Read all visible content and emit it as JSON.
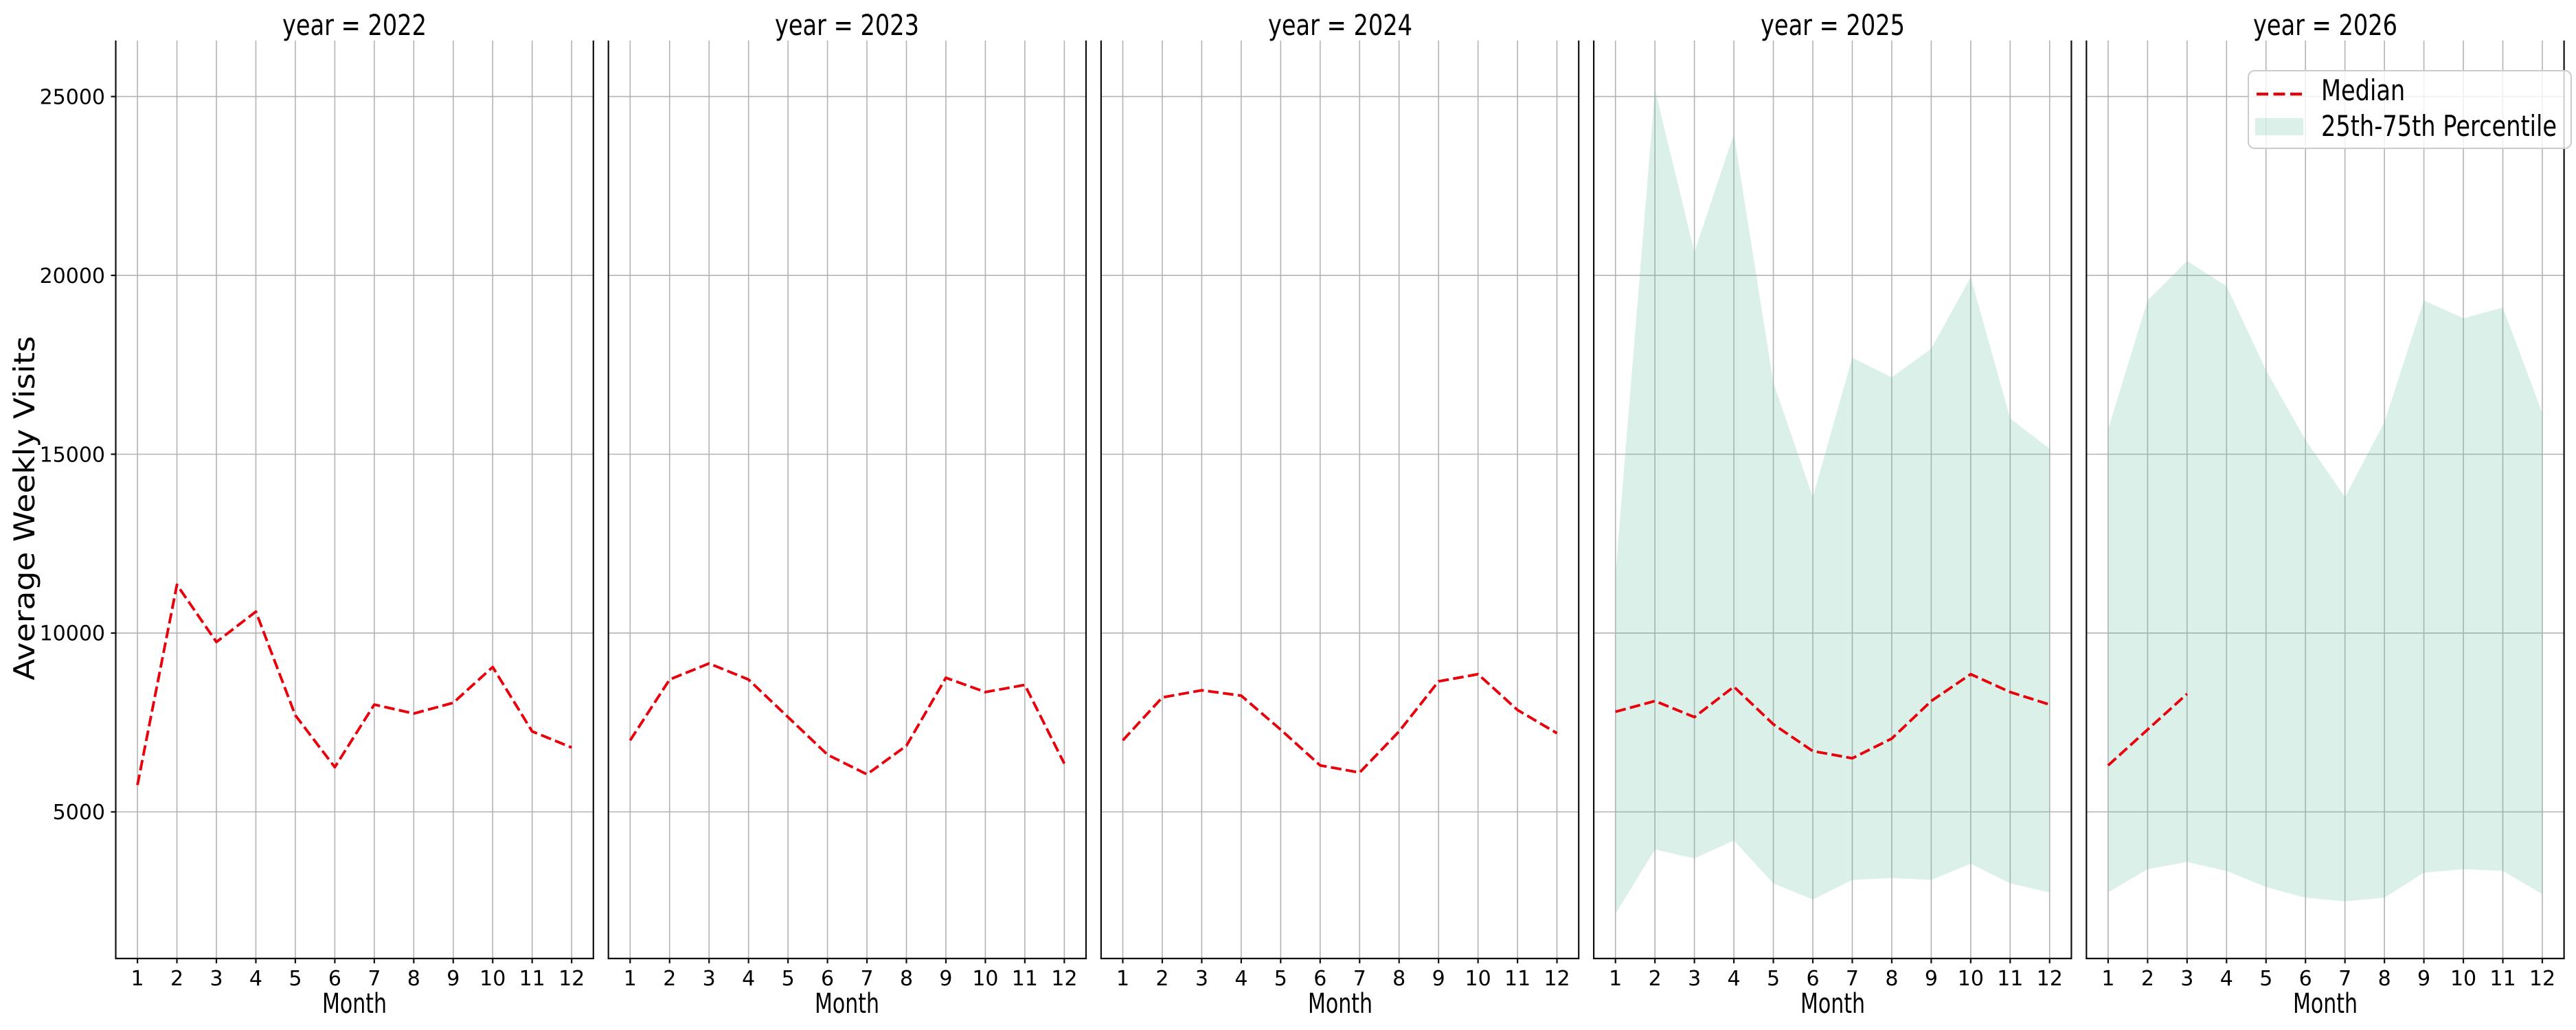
{
  "figure_title": "",
  "chart_data": {
    "type": "line",
    "facet_variable": "year",
    "x": [
      1,
      2,
      3,
      4,
      5,
      6,
      7,
      8,
      9,
      10,
      11,
      12
    ],
    "xlabel": "Month",
    "ylabel": "Average Weekly Visits",
    "ylim": [
      900,
      26570
    ],
    "yticks": [
      5000,
      10000,
      15000,
      20000,
      25000
    ],
    "grid": true,
    "legend_position": "upper right",
    "legend_items": [
      {
        "label": "Median",
        "type": "dashed-line"
      },
      {
        "label": "25th-75th Percentile",
        "type": "filled-patch"
      }
    ],
    "colors": {
      "median_line": "#e8000b",
      "band_fill": "#66c2a5",
      "band_opacity": 0.24,
      "grid_line": "#b3b3b3",
      "spine": "#0f0f0f",
      "tick_text": "#000000",
      "legend_border": "#cccccc"
    },
    "panels": [
      {
        "title": "year = 2022",
        "year": 2022,
        "median": [
          5750,
          11350,
          9750,
          10600,
          7700,
          6250,
          8000,
          7750,
          8050,
          9050,
          7250,
          6800
        ],
        "p25": null,
        "p75": null
      },
      {
        "title": "year = 2023",
        "year": 2023,
        "median": [
          7000,
          8700,
          9150,
          8700,
          7650,
          6600,
          6050,
          6850,
          8750,
          8350,
          8550,
          6350
        ],
        "p25": null,
        "p75": null
      },
      {
        "title": "year = 2024",
        "year": 2024,
        "median": [
          7000,
          8200,
          8400,
          8250,
          7300,
          6300,
          6100,
          7250,
          8650,
          8850,
          7850,
          7200
        ],
        "p25": null,
        "p75": null
      },
      {
        "title": "year = 2025",
        "year": 2025,
        "median": [
          7800,
          8100,
          7650,
          8500,
          7450,
          6700,
          6500,
          7050,
          8100,
          8850,
          8350,
          8000
        ],
        "p25": [
          2150,
          3950,
          3700,
          4200,
          3000,
          2550,
          3100,
          3150,
          3100,
          3550,
          3000,
          2750
        ],
        "p75": [
          11650,
          25200,
          20650,
          23950,
          17000,
          13800,
          17700,
          17150,
          17950,
          19950,
          16000,
          15150
        ]
      },
      {
        "title": "year = 2026",
        "year": 2026,
        "median": [
          6300,
          7300,
          8300,
          null,
          null,
          null,
          null,
          null,
          null,
          null,
          null,
          null
        ],
        "p25": [
          2750,
          3400,
          3600,
          3350,
          2900,
          2600,
          2500,
          2600,
          3300,
          3400,
          3350,
          2700
        ],
        "p75": [
          15700,
          19300,
          20400,
          19700,
          17350,
          15400,
          13800,
          15900,
          19300,
          18800,
          19100,
          16150
        ]
      }
    ]
  }
}
